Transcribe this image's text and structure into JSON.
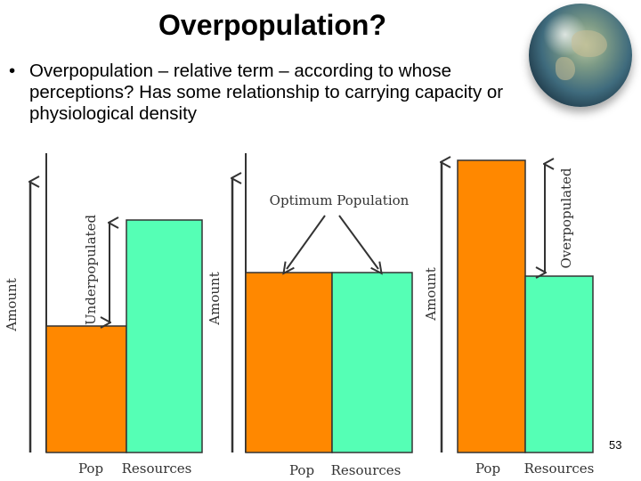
{
  "slide": {
    "title": "Overpopulation?",
    "bullet_marker": "•",
    "bullet_text": "Overpopulation – relative term – according to whose perceptions? Has some relationship to carrying capacity or physiological density",
    "page_number": "53"
  },
  "diagram": {
    "colors": {
      "pop": "#FF8800",
      "resources": "#55FFB5",
      "ink": "#333333"
    },
    "panels": [
      {
        "id": "underpopulated",
        "axis_label": "Amount",
        "pop_label": "Pop",
        "resources_label": "Resources",
        "annotation": "Underpopulated"
      },
      {
        "id": "optimum",
        "axis_label": "Amount",
        "pop_label": "Pop",
        "resources_label": "Resources",
        "annotation": "Optimum Population"
      },
      {
        "id": "overpopulated",
        "axis_label": "Amount",
        "pop_label": "Pop",
        "resources_label": "Resources",
        "annotation": "Overpopulated"
      }
    ]
  },
  "decor": {
    "globe_icon": "earth-globe-icon"
  }
}
